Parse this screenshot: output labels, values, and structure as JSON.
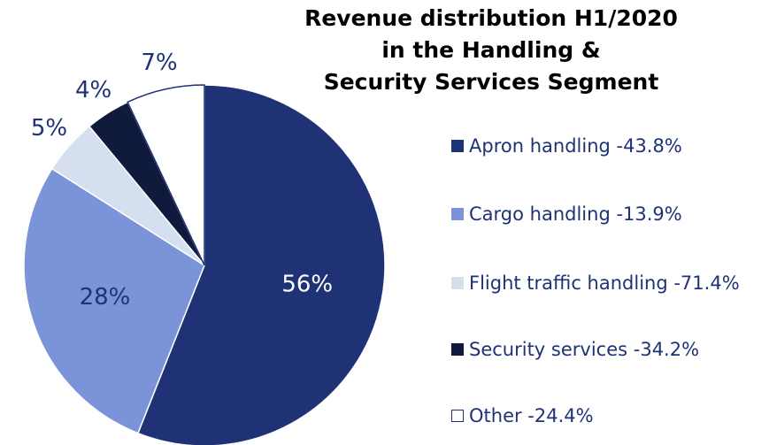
{
  "chart_data": {
    "type": "pie",
    "title": [
      "Revenue distribution H1/2020",
      "in the Handling &",
      "Security Services Segment"
    ],
    "categories": [
      "Apron handling -43.8%",
      "Cargo handling -13.9%",
      "Flight traffic handling -71.4%",
      "Security services -34.2%",
      "Other -24.4%"
    ],
    "values": [
      56,
      28,
      5,
      4,
      7
    ],
    "value_labels": [
      "56%",
      "28%",
      "5%",
      "4%",
      "7%"
    ],
    "colors": [
      "#1f3275",
      "#7b93d9",
      "#d6dff0",
      "#0f1a3d",
      "#ffffff"
    ],
    "legend": "right"
  }
}
